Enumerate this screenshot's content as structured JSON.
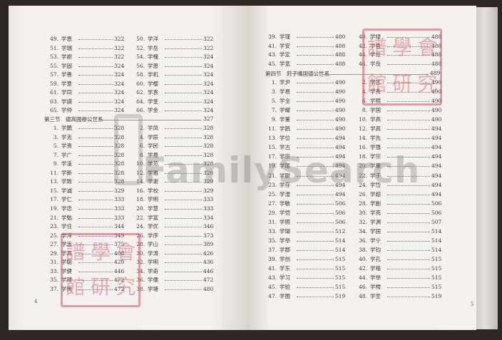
{
  "left_page": {
    "page_number": "4",
    "col1_top": [
      [
        "49.",
        "学恩",
        "322"
      ],
      [
        "51.",
        "学瑞",
        "322"
      ],
      [
        "53.",
        "学謝",
        "322"
      ],
      [
        "55.",
        "学固",
        "324"
      ],
      [
        "57.",
        "学善",
        "324"
      ],
      [
        "59.",
        "学意",
        "324"
      ],
      [
        "61.",
        "学同",
        "324"
      ],
      [
        "63.",
        "学謨",
        "324"
      ],
      [
        "65.",
        "学仲",
        "324"
      ]
    ],
    "col2_top": [
      [
        "50.",
        "学洋",
        "322"
      ],
      [
        "52.",
        "学岳",
        "322"
      ],
      [
        "54.",
        "学槐",
        "324"
      ],
      [
        "56.",
        "学恩",
        "324"
      ],
      [
        "58.",
        "学机",
        "324"
      ],
      [
        "60.",
        "学樱",
        "324"
      ],
      [
        "62.",
        "学袁",
        "324"
      ],
      [
        "64.",
        "学奎",
        "324"
      ],
      [
        "66.",
        "学金",
        "324"
      ]
    ],
    "section": {
      "label": "第三节　德高國穆公世系",
      "page": "327"
    },
    "col1": [
      [
        "1.",
        "学鹏",
        "328"
      ],
      [
        "3.",
        "学克",
        "328"
      ],
      [
        "5.",
        "学贵",
        "328"
      ],
      [
        "7.",
        "学广",
        "328"
      ],
      [
        "9.",
        "学溪",
        "328"
      ],
      [
        "11.",
        "学新",
        "328"
      ],
      [
        "13.",
        "学致",
        "328"
      ],
      [
        "15.",
        "学诚",
        "329"
      ],
      [
        "17.",
        "学仁",
        "333"
      ],
      [
        "19.",
        "学忠",
        "333"
      ],
      [
        "21.",
        "学勉",
        "333"
      ],
      [
        "23.",
        "学任",
        "344"
      ],
      [
        "25.",
        "学洋",
        "349"
      ],
      [
        "27.",
        "学远",
        "375"
      ],
      [
        "29.",
        "学高",
        "408"
      ],
      [
        "31.",
        "学聪",
        "428"
      ],
      [
        "33.",
        "学健",
        "446"
      ],
      [
        "35.",
        "学璋",
        "472"
      ],
      [
        "37.",
        "学殉",
        "472"
      ]
    ],
    "col2": [
      [
        "2.",
        "学凤",
        "328"
      ],
      [
        "4.",
        "学辰",
        "328"
      ],
      [
        "6.",
        "学民",
        "328"
      ],
      [
        "8.",
        "学易",
        "328"
      ],
      [
        "10.",
        "学范",
        "328"
      ],
      [
        "12.",
        "学雅",
        "328"
      ],
      [
        "14.",
        "学谢",
        "329"
      ],
      [
        "16.",
        "学校",
        "329"
      ],
      [
        "18.",
        "学明",
        "333"
      ],
      [
        "20.",
        "学慧",
        "333"
      ],
      [
        "22.",
        "学富",
        "334"
      ],
      [
        "24.",
        "学优",
        "346"
      ],
      [
        "26.",
        "学序",
        "373"
      ],
      [
        "28.",
        "学山",
        "389"
      ],
      [
        "30.",
        "学涛",
        "426"
      ],
      [
        "32.",
        "学明",
        "436"
      ],
      [
        "34.",
        "学奇",
        "446"
      ],
      [
        "36.",
        "学儒",
        "472"
      ],
      [
        "38.",
        "学塘",
        "480"
      ]
    ]
  },
  "right_page": {
    "page_number": "5",
    "col1_top": [
      [
        "39.",
        "学瑾",
        "480"
      ],
      [
        "41.",
        "学安",
        "488"
      ],
      [
        "43.",
        "学定",
        "488"
      ],
      [
        "45.",
        "学宽",
        "488"
      ]
    ],
    "col2_top": [
      [
        "40.",
        "学绿",
        "488"
      ],
      [
        "42.",
        "学官",
        "488"
      ],
      [
        "44.",
        "学位",
        "488"
      ],
      [
        "46.",
        "学岳",
        "488"
      ]
    ],
    "section": {
      "label": "第四节　莳子嘴国德公世系",
      "page": "489"
    },
    "col1": [
      [
        "1.",
        "学尹",
        "490"
      ],
      [
        "3.",
        "学易",
        "490"
      ],
      [
        "5.",
        "学全",
        "490"
      ],
      [
        "7.",
        "学耀",
        "490"
      ],
      [
        "9.",
        "学董",
        "490"
      ],
      [
        "11.",
        "学鹊",
        "490"
      ],
      [
        "13.",
        "学位",
        "494"
      ],
      [
        "15.",
        "学古",
        "494"
      ],
      [
        "17.",
        "学宗",
        "494"
      ],
      [
        "19.",
        "学尾",
        "494"
      ],
      [
        "21.",
        "学聪",
        "494"
      ],
      [
        "23.",
        "学存",
        "494"
      ],
      [
        "25.",
        "学湿",
        "494"
      ],
      [
        "27.",
        "学敏",
        "506"
      ],
      [
        "29.",
        "学恺",
        "506"
      ],
      [
        "31.",
        "学照",
        "506"
      ],
      [
        "33.",
        "学瑚",
        "512"
      ],
      [
        "35.",
        "学举",
        "514"
      ],
      [
        "37.",
        "学郡",
        "514"
      ],
      [
        "39.",
        "学创",
        "515"
      ],
      [
        "41.",
        "学东",
        "515"
      ],
      [
        "43.",
        "学习",
        "515"
      ],
      [
        "45.",
        "学验",
        "515"
      ],
      [
        "47.",
        "学图",
        "519"
      ]
    ],
    "col2": [
      [
        "2.",
        "学区",
        "490"
      ],
      [
        "4.",
        "学秀",
        "490"
      ],
      [
        "6.",
        "学照",
        "490"
      ],
      [
        "8.",
        "学国",
        "490"
      ],
      [
        "10.",
        "学高",
        "490"
      ],
      [
        "12.",
        "学高",
        "494"
      ],
      [
        "14.",
        "学先",
        "494"
      ],
      [
        "16.",
        "学强",
        "494"
      ],
      [
        "18.",
        "学宗",
        "494"
      ],
      [
        "20.",
        "学董",
        "494"
      ],
      [
        "22.",
        "学于",
        "494"
      ],
      [
        "24.",
        "学岱",
        "494"
      ],
      [
        "26.",
        "学超",
        "494"
      ],
      [
        "28.",
        "学副",
        "506"
      ],
      [
        "30.",
        "学亮",
        "506"
      ],
      [
        "32.",
        "学渊",
        "507"
      ],
      [
        "34.",
        "学国",
        "514"
      ],
      [
        "36.",
        "学宁",
        "514"
      ],
      [
        "38.",
        "学钧",
        "514"
      ],
      [
        "40.",
        "学孔",
        "515"
      ],
      [
        "42.",
        "学格",
        "515"
      ],
      [
        "44.",
        "学举",
        "515"
      ],
      [
        "46.",
        "学樗",
        "515"
      ],
      [
        "48.",
        "学圣",
        "519"
      ]
    ]
  },
  "watermark": "FamilySearch",
  "seal_text": [
    "譜",
    "學",
    "會",
    "館",
    "研",
    "究"
  ],
  "colors": {
    "seal": "#d65064",
    "paper": "#f3f1ee",
    "background": "#2b2624"
  }
}
